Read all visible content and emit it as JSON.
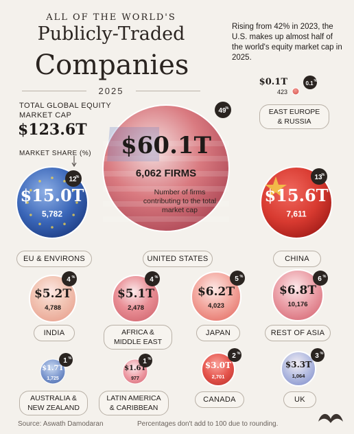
{
  "header": {
    "kicker": "ALL OF THE WORLD'S",
    "title_line1": "Publicly-Traded",
    "title_line2": "Companies",
    "year": "2025"
  },
  "note": "Rising from 42% in 2023, the U.S. makes up almost half of the world's equity market cap in 2025.",
  "total": {
    "label": "TOTAL GLOBAL EQUITY MARKET CAP",
    "value": "$123.6T"
  },
  "market_share_label": "MARKET SHARE (%)",
  "footer": {
    "source": "Source: Aswath Damodaran",
    "disclaimer": "Percentages don't add to 100 due to rounding."
  },
  "annotation": {
    "us_firms_caption": "Number of firms contributing to the total market cap"
  },
  "colors": {
    "background": "#f4f1ec",
    "badge": "#2a2420",
    "us_red": "#d45a5a",
    "us_blue": "#5a78c0",
    "eu_blue": "#3a66b8",
    "china_red": "#d83a30"
  },
  "chart_data": {
    "type": "bubble",
    "title": "All of the World's Publicly-Traded Companies 2025",
    "series": [
      {
        "name": "United States",
        "label": "UNITED STATES",
        "market_cap": "$60.1T",
        "value_t": 60.1,
        "firms": "6,062 FIRMS",
        "share": "49",
        "icon": "us-flag"
      },
      {
        "name": "EU & Environs",
        "label": "EU & ENVIRONS",
        "market_cap": "$15.0T",
        "value_t": 15.0,
        "firms": "5,782",
        "share": "12",
        "icon": "eu-flag"
      },
      {
        "name": "China",
        "label": "CHINA",
        "market_cap": "$15.6T",
        "value_t": 15.6,
        "firms": "7,611",
        "share": "13",
        "icon": "china-flag"
      },
      {
        "name": "East Europe & Russia",
        "label": "EAST EUROPE & RUSSIA",
        "market_cap": "$0.1T",
        "value_t": 0.1,
        "firms": "423",
        "share": "0.1",
        "icon": "dot"
      },
      {
        "name": "India",
        "label": "INDIA",
        "market_cap": "$5.2T",
        "value_t": 5.2,
        "firms": "4,788",
        "share": "4",
        "icon": "india-flag"
      },
      {
        "name": "Africa & Middle East",
        "label": "AFRICA & MIDDLE EAST",
        "market_cap": "$5.1T",
        "value_t": 5.1,
        "firms": "2,478",
        "share": "4",
        "icon": "region"
      },
      {
        "name": "Japan",
        "label": "JAPAN",
        "market_cap": "$6.2T",
        "value_t": 6.2,
        "firms": "4,023",
        "share": "5",
        "icon": "japan-flag"
      },
      {
        "name": "Rest of Asia",
        "label": "REST OF ASIA",
        "market_cap": "$6.8T",
        "value_t": 6.8,
        "firms": "10,176",
        "share": "6",
        "icon": "region"
      },
      {
        "name": "Australia & New Zealand",
        "label": "AUSTRALIA & NEW ZEALAND",
        "market_cap": "$1.7T",
        "value_t": 1.7,
        "firms": "1,725",
        "share": "1",
        "icon": "australia-flag"
      },
      {
        "name": "Latin America & Caribbean",
        "label": "LATIN AMERICA & CARIBBEAN",
        "market_cap": "$1.6T",
        "value_t": 1.6,
        "firms": "977",
        "share": "1",
        "icon": "region"
      },
      {
        "name": "Canada",
        "label": "CANADA",
        "market_cap": "$3.0T",
        "value_t": 3.0,
        "firms": "2,701",
        "share": "2",
        "icon": "canada-flag"
      },
      {
        "name": "UK",
        "label": "UK",
        "market_cap": "$3.3T",
        "value_t": 3.3,
        "firms": "1,064",
        "share": "3",
        "icon": "uk-flag"
      }
    ]
  }
}
